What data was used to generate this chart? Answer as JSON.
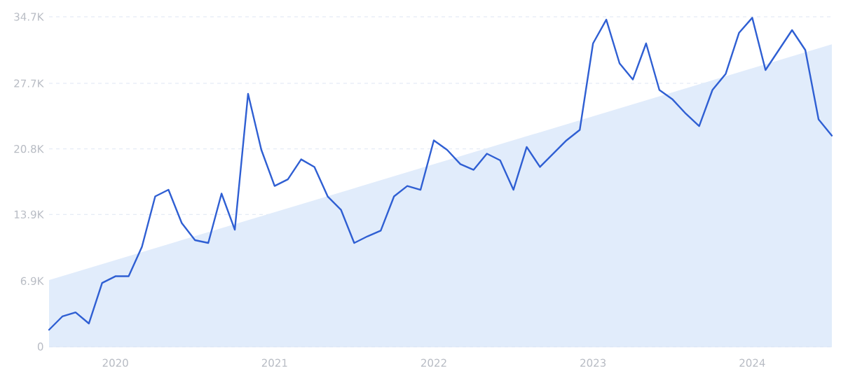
{
  "chart_data": {
    "type": "line",
    "x": [
      "2019-08",
      "2019-09",
      "2019-10",
      "2019-11",
      "2019-12",
      "2020-01",
      "2020-02",
      "2020-03",
      "2020-04",
      "2020-05",
      "2020-06",
      "2020-07",
      "2020-08",
      "2020-09",
      "2020-10",
      "2020-11",
      "2020-12",
      "2021-01",
      "2021-02",
      "2021-03",
      "2021-04",
      "2021-05",
      "2021-06",
      "2021-07",
      "2021-08",
      "2021-09",
      "2021-10",
      "2021-11",
      "2021-12",
      "2022-01",
      "2022-02",
      "2022-03",
      "2022-04",
      "2022-05",
      "2022-06",
      "2022-07",
      "2022-08",
      "2022-09",
      "2022-10",
      "2022-11",
      "2022-12",
      "2023-01",
      "2023-02",
      "2023-03",
      "2023-04",
      "2023-05",
      "2023-06",
      "2023-07",
      "2023-08",
      "2023-09",
      "2023-10",
      "2023-11",
      "2023-12",
      "2024-01",
      "2024-02",
      "2024-03",
      "2024-04",
      "2024-05",
      "2024-06",
      "2024-07"
    ],
    "series": [
      {
        "type": "area",
        "color": "#e1ecfb",
        "x": [
          "2019-08",
          "2024-07"
        ],
        "values": [
          7000,
          31800
        ]
      },
      {
        "color": "#2f5fd3",
        "values": [
          1770,
          3170,
          3600,
          2430,
          6700,
          7400,
          7400,
          10500,
          15800,
          16500,
          13000,
          11200,
          10900,
          16100,
          12300,
          26600,
          20700,
          16900,
          17600,
          19700,
          18900,
          15800,
          14400,
          10900,
          11600,
          12200,
          15800,
          16900,
          16500,
          21700,
          20700,
          19200,
          18600,
          20300,
          19600,
          16500,
          21000,
          18900,
          20300,
          21700,
          22800,
          31900,
          34400,
          29800,
          28100,
          31900,
          27000,
          26000,
          24500,
          23200,
          27000,
          28700,
          33000,
          34600,
          29100,
          31200,
          33300,
          31200,
          23900,
          22200
        ]
      }
    ],
    "xlim": [
      "2019-08",
      "2024-07"
    ],
    "xticks": [
      {
        "value": "2020-01",
        "label": "2020"
      },
      {
        "value": "2021-01",
        "label": "2021"
      },
      {
        "value": "2022-01",
        "label": "2022"
      },
      {
        "value": "2023-01",
        "label": "2023"
      },
      {
        "value": "2024-01",
        "label": "2024"
      }
    ],
    "ylim": [
      0,
      34700
    ],
    "yticks": [
      {
        "value": 0,
        "label": "0"
      },
      {
        "value": 6900,
        "label": "6.9K"
      },
      {
        "value": 13900,
        "label": "13.9K"
      },
      {
        "value": 20800,
        "label": "20.8K"
      },
      {
        "value": 27700,
        "label": "27.7K"
      },
      {
        "value": 34700,
        "label": "34.7K"
      }
    ],
    "grid": "y",
    "legend": false,
    "marker": "none",
    "line_style": "solid"
  }
}
